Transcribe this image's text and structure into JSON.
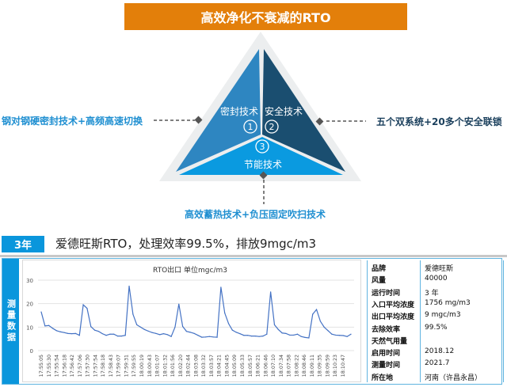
{
  "header": {
    "title": "高效净化不衰减的RTO"
  },
  "triangle": {
    "segments": [
      {
        "label": "密封技术",
        "number": "1",
        "color": "#2e86c1"
      },
      {
        "label": "安全技术",
        "number": "2",
        "color": "#1a4e70"
      },
      {
        "label": "节能技术",
        "number": "3",
        "color": "#0a9ae0"
      }
    ],
    "callouts": {
      "left": "钢对钢硬密封技术+高频高速切换",
      "right": "五个双系统+20多个安全联锁",
      "bottom": "高效蓄热技术+负压固定吹扫技术"
    },
    "colors": {
      "left_text": "#1f8fd1",
      "right_text": "#1a3f5c",
      "bottom_text": "#1f8fd1",
      "outline": "#eceeef"
    }
  },
  "banner": {
    "badge": "3年",
    "text": "爱德旺斯RTO，处理效率99.5%，排放9mgc/m3"
  },
  "side_label": "测量数据",
  "chart_data": {
    "type": "line",
    "title": "RTO出口 单位mgc/m3",
    "ylim": [
      0,
      30
    ],
    "yticks": [
      0,
      10,
      20,
      30
    ],
    "grid": true,
    "line_color": "#4472c4",
    "x_tick_labels": [
      "17:55:05",
      "17:55:30",
      "17:55:54",
      "17:56:18",
      "17:56:42",
      "17:57:06",
      "17:57:30",
      "17:57:54",
      "17:58:18",
      "17:58:43",
      "17:59:07",
      "17:59:31",
      "17:59:55",
      "18:00:19",
      "18:00:43",
      "18:01:07",
      "18:01:32",
      "18:01:56",
      "18:02:20",
      "18:02:44",
      "18:03:08",
      "18:03:32",
      "18:03:57",
      "18:04:21",
      "18:04:45",
      "18:05:09",
      "18:05:33",
      "18:05:57",
      "18:06:21",
      "18:06:46",
      "18:07:10",
      "18:07:34",
      "18:07:58",
      "18:08:22",
      "18:08:46",
      "18:09:11",
      "18:09:35",
      "18:09:59",
      "18:10:23",
      "18:10:47"
    ],
    "values": [
      16.5,
      10.5,
      10.7,
      9.5,
      8.5,
      8,
      7.7,
      7.3,
      7.2,
      7.3,
      6.5,
      19.5,
      18,
      10.2,
      8.7,
      8.2,
      7.2,
      6.5,
      7,
      7,
      6.2,
      6.2,
      6.5,
      27.5,
      15.5,
      11,
      10,
      9,
      8.3,
      7.7,
      7.3,
      6.8,
      7.2,
      6.8,
      6,
      10,
      19.8,
      10.3,
      8.2,
      7.8,
      7.3,
      6.5,
      5.7,
      5.8,
      6,
      5.8,
      5.7,
      27,
      16,
      11.5,
      8.7,
      7.8,
      7.2,
      6.5,
      6.5,
      6.2,
      6.2,
      6,
      6.2,
      7,
      25,
      11,
      9,
      7.5,
      7.3,
      6.6,
      6.6,
      7,
      6,
      5.6,
      5.4,
      15.5,
      17.5,
      12.5,
      10,
      8.5,
      7,
      6.6,
      6.5,
      6.4,
      6,
      7
    ]
  },
  "info_table": [
    {
      "label": "品牌",
      "value": "爱德旺斯"
    },
    {
      "label": "风量",
      "value": "40000"
    },
    {
      "label": "运行时间",
      "value": "3 年"
    },
    {
      "label": "入口平均浓度",
      "value": "1756 mg/m3"
    },
    {
      "label": "出口平均浓度",
      "value": "9 mgc/m3"
    },
    {
      "label": "去除效率",
      "value": "99.5%"
    },
    {
      "label": "天然气用量",
      "value": ""
    },
    {
      "label": "启用时间",
      "value": "2018.12"
    },
    {
      "label": "测量时间",
      "value": "2021.7"
    },
    {
      "label": "所在地",
      "value": "河南（许昌永昌）"
    }
  ]
}
